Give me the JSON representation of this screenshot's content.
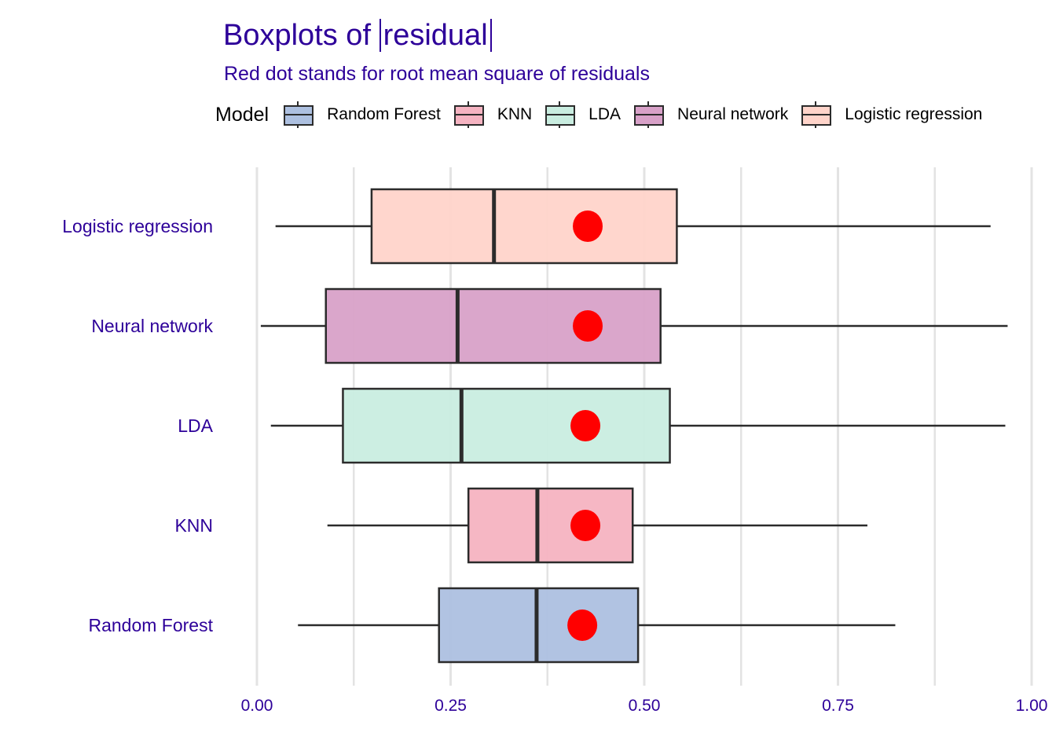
{
  "title_prefix": "Boxplots of ",
  "title_abs": "residual",
  "subtitle": "Red dot stands for root mean square of residuals",
  "legend": {
    "title": "Model",
    "items": [
      {
        "label": "Random Forest",
        "color": "#adc0e0"
      },
      {
        "label": "KNN",
        "color": "#f5b3c1"
      },
      {
        "label": "LDA",
        "color": "#c9ede0"
      },
      {
        "label": "Neural network",
        "color": "#d8a1c8"
      },
      {
        "label": "Logistic regression",
        "color": "#ffd4ca"
      }
    ]
  },
  "chart_data": {
    "type": "boxplot",
    "orientation": "horizontal",
    "title": "Boxplots of |residual|",
    "subtitle": "Red dot stands for root mean square of residuals",
    "xlabel": "",
    "ylabel": "",
    "xlim": [
      0,
      1
    ],
    "x_ticks": [
      "0.00",
      "0.25",
      "0.50",
      "0.75",
      "1.00"
    ],
    "x_tick_values": [
      0,
      0.25,
      0.5,
      0.75,
      1.0
    ],
    "grid": true,
    "legend_position": "top",
    "point_color": "#ff0000",
    "categories": [
      "Logistic regression",
      "Neural network",
      "LDA",
      "KNN",
      "Random Forest"
    ],
    "series": [
      {
        "name": "Logistic regression",
        "color": "#ffd4ca",
        "whisker_low": 0.024,
        "q1": 0.148,
        "median": 0.306,
        "q3": 0.542,
        "whisker_high": 0.947,
        "rmse": 0.427
      },
      {
        "name": "Neural network",
        "color": "#d8a1c8",
        "whisker_low": 0.005,
        "q1": 0.089,
        "median": 0.259,
        "q3": 0.521,
        "whisker_high": 0.969,
        "rmse": 0.427
      },
      {
        "name": "LDA",
        "color": "#c9ede0",
        "whisker_low": 0.018,
        "q1": 0.111,
        "median": 0.264,
        "q3": 0.533,
        "whisker_high": 0.966,
        "rmse": 0.424
      },
      {
        "name": "KNN",
        "color": "#f5b3c1",
        "whisker_low": 0.091,
        "q1": 0.273,
        "median": 0.362,
        "q3": 0.485,
        "whisker_high": 0.788,
        "rmse": 0.424
      },
      {
        "name": "Random Forest",
        "color": "#adc0e0",
        "whisker_low": 0.053,
        "q1": 0.235,
        "median": 0.361,
        "q3": 0.492,
        "whisker_high": 0.824,
        "rmse": 0.42
      }
    ]
  }
}
